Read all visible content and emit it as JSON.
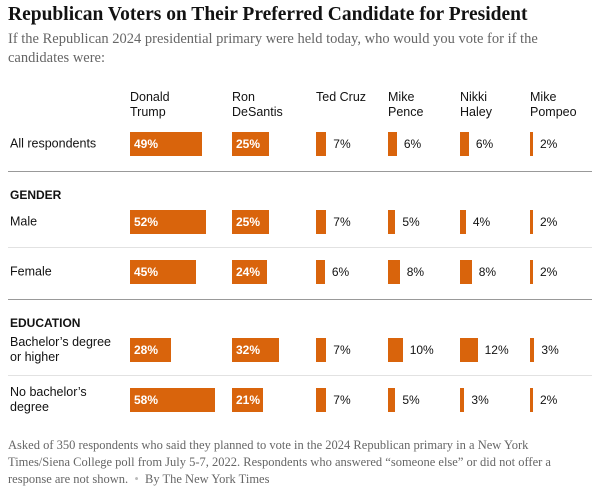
{
  "chart_data": {
    "type": "bar-table",
    "title": "Republican Voters on Their Preferred Candidate for President",
    "subtitle": "If the Republican 2024 presidential primary were held today, who would you vote for if the candidates were:",
    "color": "#d9640c",
    "candidates": [
      "Donald Trump",
      "Ron DeSantis",
      "Ted Cruz",
      "Mike Pence",
      "Nikki Haley",
      "Mike Pompeo"
    ],
    "groups": [
      {
        "rows": [
          {
            "label": "All respondents",
            "values": [
              49,
              25,
              7,
              6,
              6,
              2
            ],
            "value_labels": [
              "49%",
              "25%",
              "7%",
              "6%",
              "6%",
              "2%"
            ]
          }
        ]
      },
      {
        "name": "GENDER",
        "rows": [
          {
            "label": "Male",
            "values": [
              52,
              25,
              7,
              5,
              4,
              2
            ],
            "value_labels": [
              "52%",
              "25%",
              "7%",
              "5%",
              "4%",
              "2%"
            ]
          },
          {
            "label": "Female",
            "values": [
              45,
              24,
              6,
              8,
              8,
              2
            ],
            "value_labels": [
              "45%",
              "24%",
              "6%",
              "8%",
              "8%",
              "2%"
            ]
          }
        ]
      },
      {
        "name": "EDUCATION",
        "rows": [
          {
            "label": "Bachelor’s degree or higher",
            "values": [
              28,
              32,
              7,
              10,
              12,
              3
            ],
            "value_labels": [
              "28%",
              "32%",
              "7%",
              "10%",
              "12%",
              "3%"
            ]
          },
          {
            "label": "No bachelor’s degree",
            "values": [
              58,
              21,
              7,
              5,
              3,
              2
            ],
            "value_labels": [
              "58%",
              "21%",
              "7%",
              "5%",
              "3%",
              "2%"
            ]
          }
        ]
      }
    ],
    "note": "Asked of 350 respondents who said they planned to vote in the 2024 Republican primary in a New York Times/Siena College poll from July 5-7, 2022. Respondents who answered “someone else” or did not offer a response are not shown.",
    "credit": "By The New York Times"
  }
}
